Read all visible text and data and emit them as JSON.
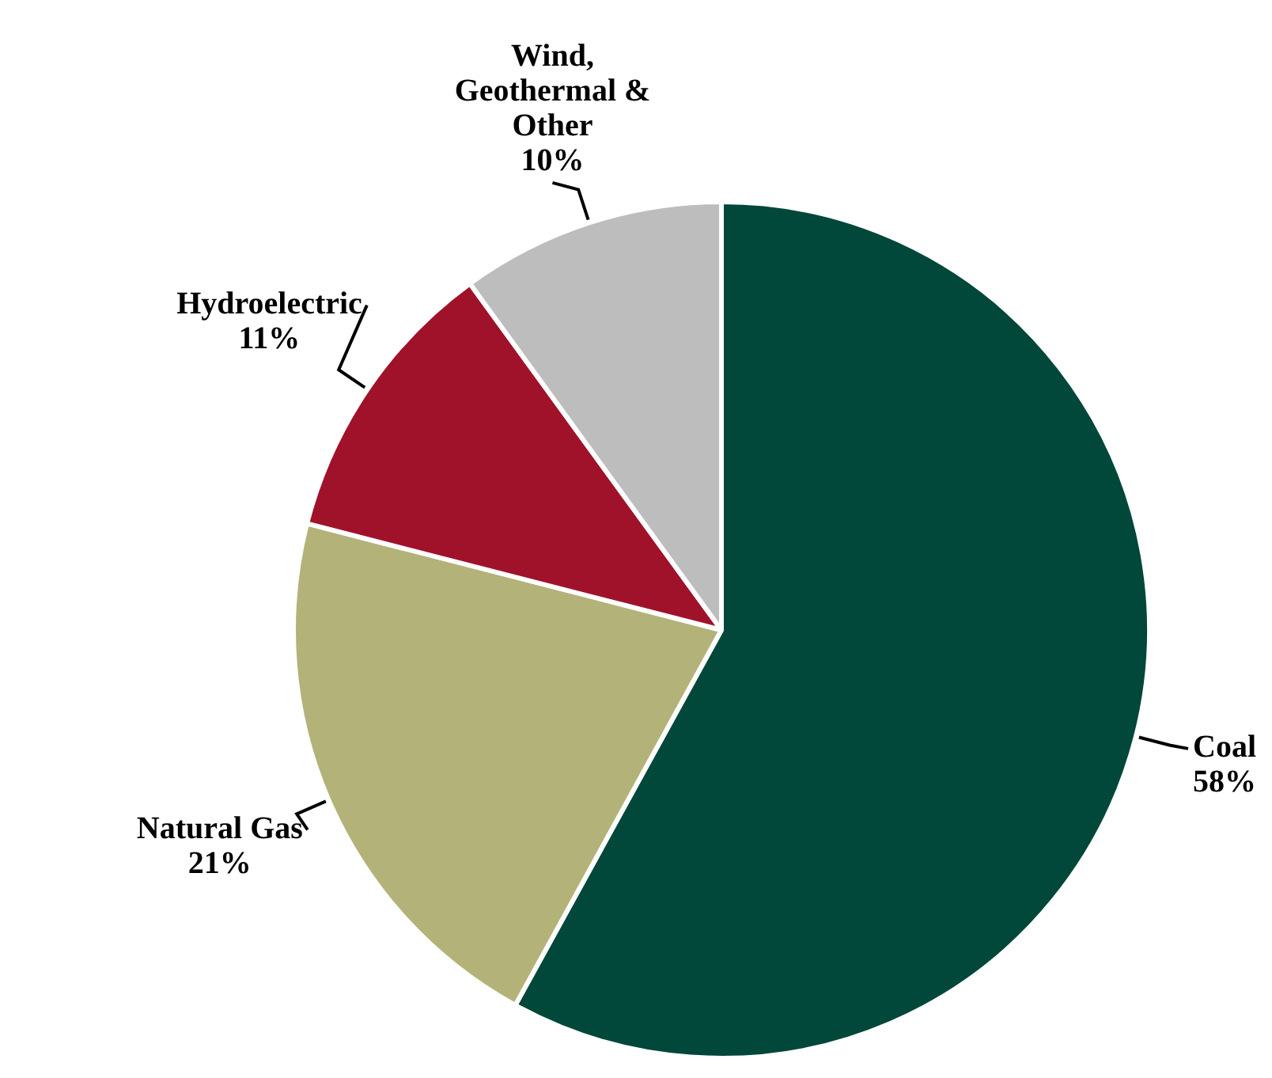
{
  "chart_data": {
    "type": "pie",
    "categories": [
      "Coal",
      "Natural Gas",
      "Hydroelectric",
      "Wind, Geothermal & Other"
    ],
    "values": [
      58,
      21,
      11,
      10
    ],
    "value_labels": [
      "58%",
      "21%",
      "11%",
      "10%"
    ],
    "colors": [
      "#01473a",
      "#b3b379",
      "#a0122a",
      "#bdbdbd"
    ],
    "legend": false
  }
}
